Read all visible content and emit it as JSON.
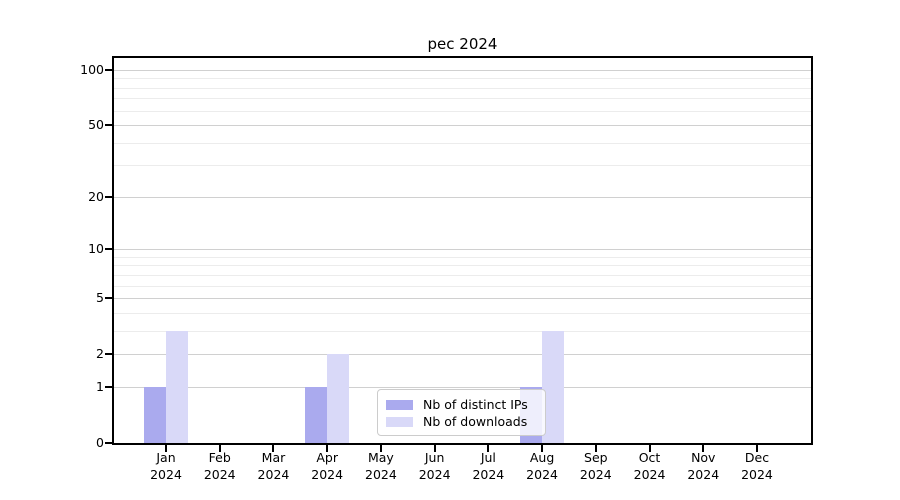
{
  "chart_data": {
    "type": "bar",
    "title": "pec 2024",
    "categories": [
      "Jan",
      "Feb",
      "Mar",
      "Apr",
      "May",
      "Jun",
      "Jul",
      "Aug",
      "Sep",
      "Oct",
      "Nov",
      "Dec"
    ],
    "category_sublabel": "2024",
    "series": [
      {
        "name": "Nb of distinct IPs",
        "color": "#aaaaee",
        "values": [
          1,
          0,
          0,
          1,
          0,
          0,
          0,
          1,
          0,
          0,
          0,
          0
        ]
      },
      {
        "name": "Nb of downloads",
        "color": "#d9d9f8",
        "values": [
          3,
          0,
          0,
          2,
          0,
          0,
          0,
          3,
          0,
          0,
          0,
          0
        ]
      }
    ],
    "xlabel": "",
    "ylabel": "",
    "yscale": "log1p",
    "ylim": [
      0,
      116
    ],
    "yticks": [
      0,
      1,
      2,
      5,
      10,
      20,
      50,
      100
    ],
    "minor_yticks": [
      3,
      4,
      6,
      7,
      8,
      9,
      30,
      40,
      60,
      70,
      80,
      90
    ],
    "grid": "horizontal",
    "legend_position": "inside-lower-center",
    "colors": {
      "axis": "#000000",
      "major_grid": "#d0d0d0",
      "minor_grid": "#ececec",
      "legend_border": "#cccccc"
    }
  }
}
